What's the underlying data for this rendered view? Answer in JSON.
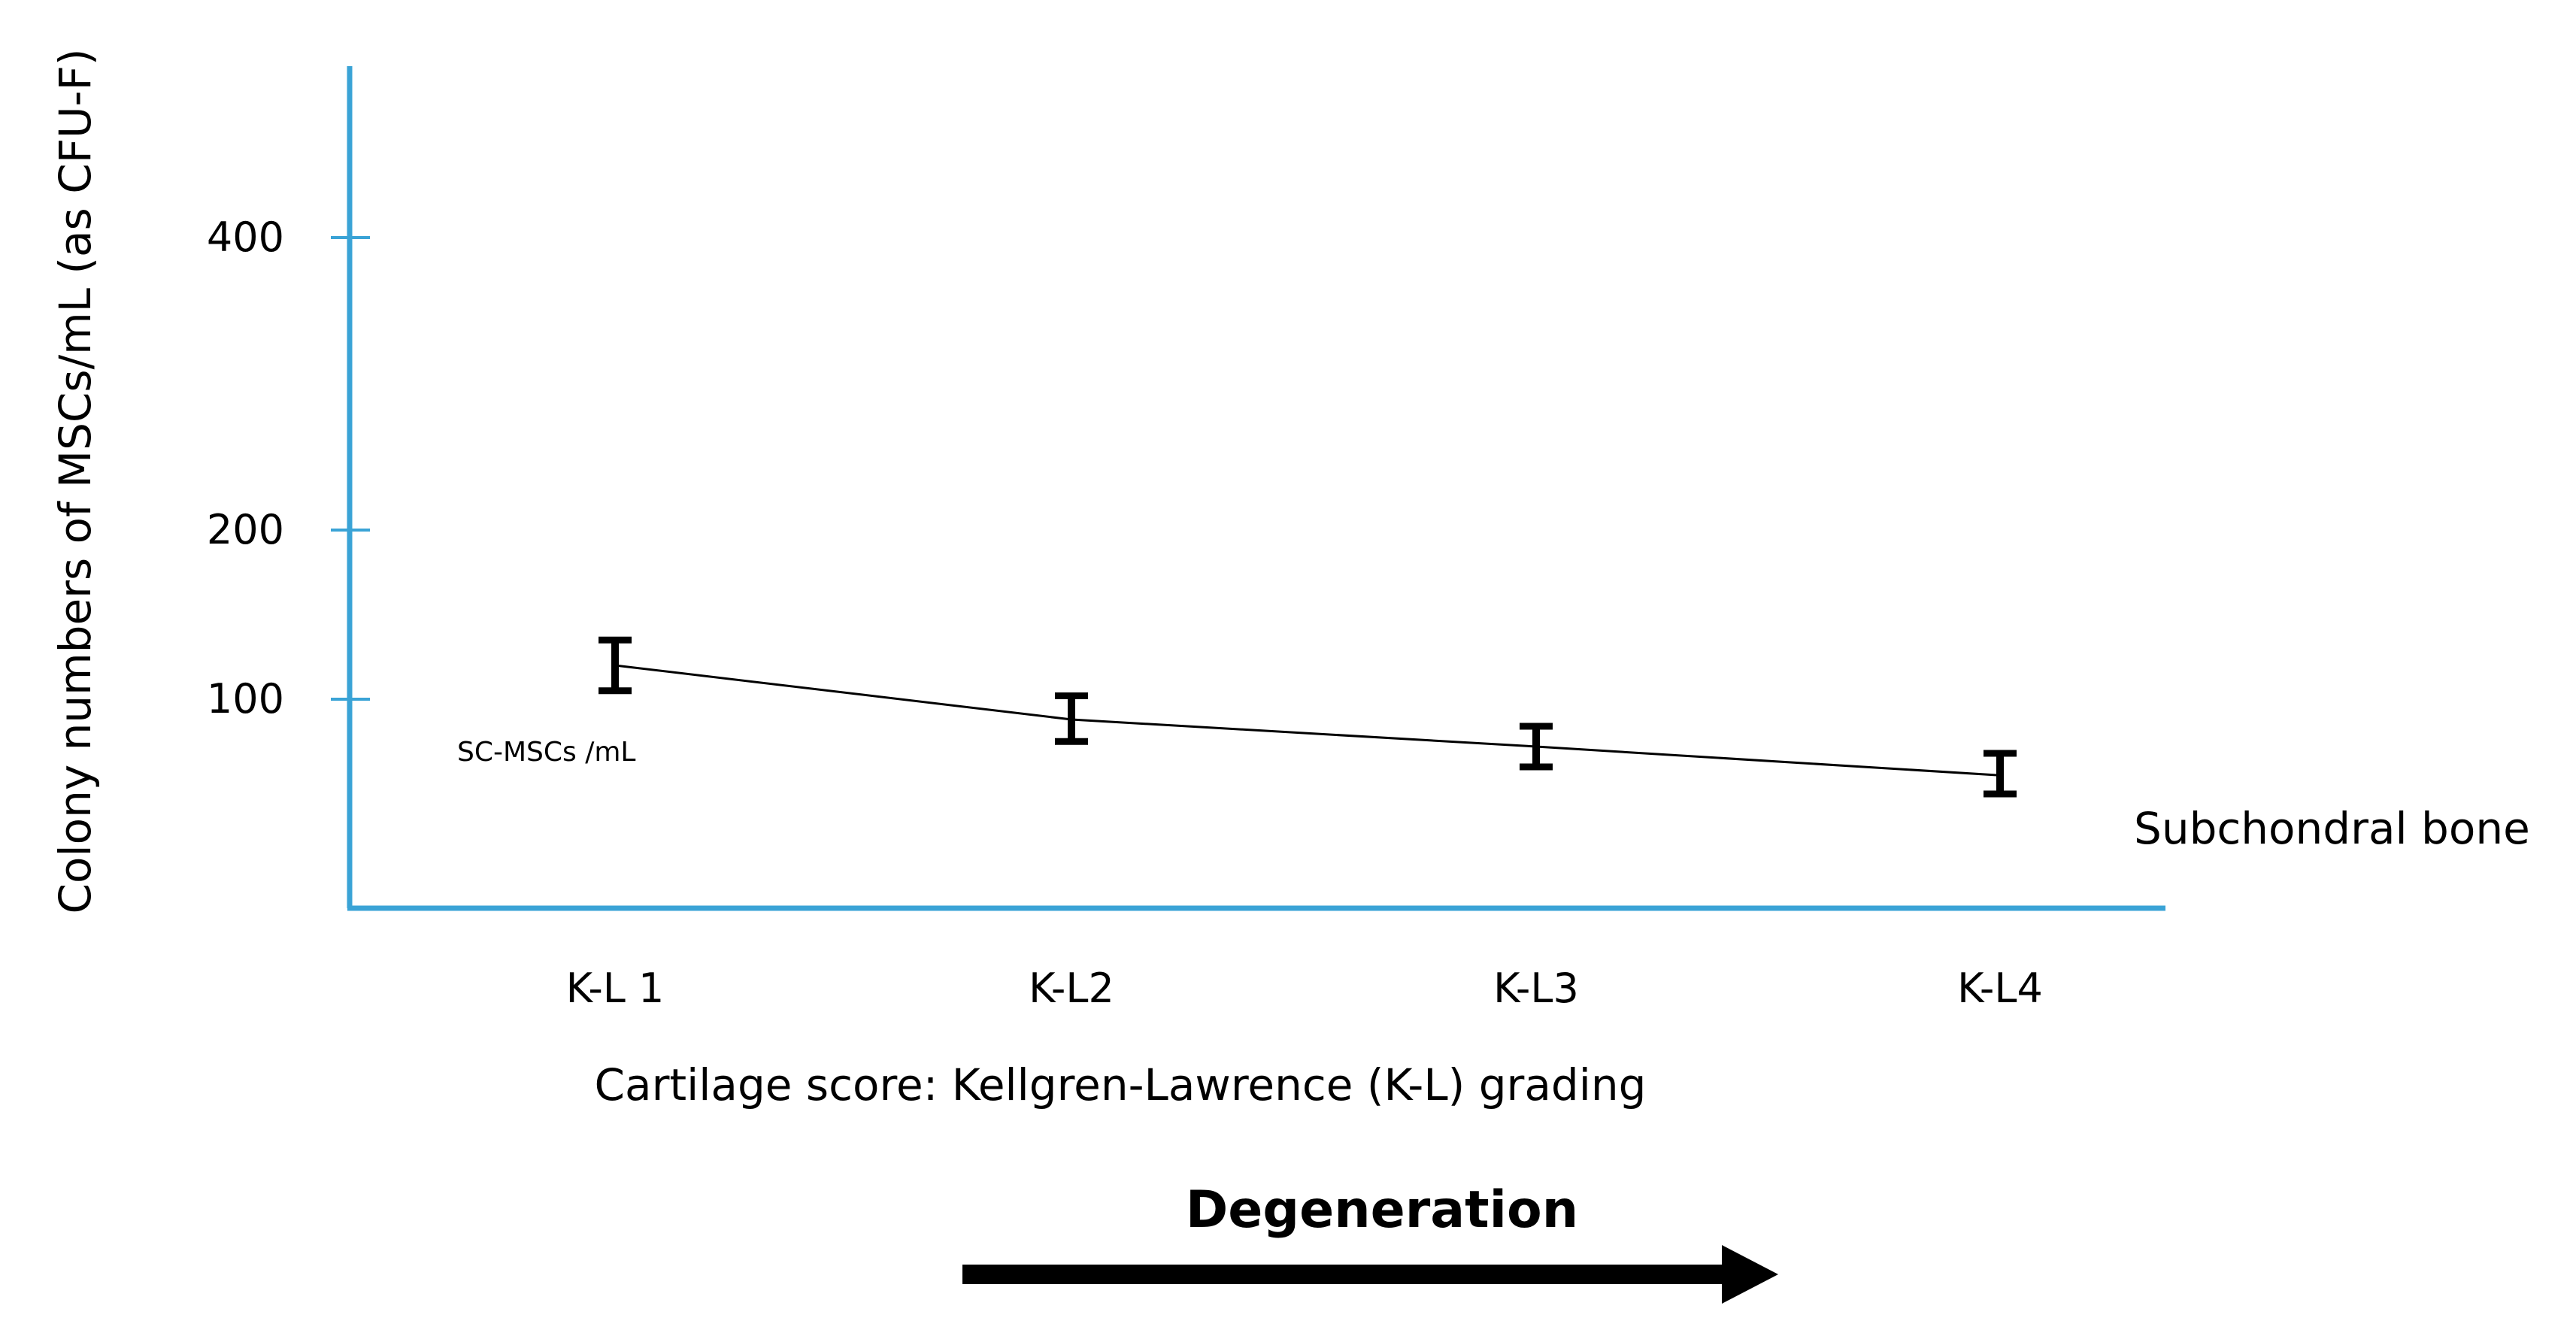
{
  "chart_data": {
    "type": "line",
    "title": "",
    "xlabel": "Cartilage score: Kellgren-Lawrence (K-L) grading",
    "ylabel": "Colony numbers of MSCs/mL (as CFU-F)",
    "categories": [
      "K-L 1",
      "K-L2",
      "K-L3",
      "K-L4"
    ],
    "y_ticks": [
      "400",
      "200",
      "100"
    ],
    "series": [
      {
        "name": "SC-MSCs /mL",
        "values": [
          120,
          88,
          72,
          55
        ],
        "error_low": [
          105,
          75,
          60,
          44
        ],
        "error_high": [
          135,
          102,
          84,
          68
        ]
      }
    ],
    "region_label": "Subchondral bone",
    "grid": false,
    "legend": "none",
    "colors": {
      "axis": "#3aa3d6",
      "line": "#000000"
    }
  },
  "annotation": {
    "label": "Degeneration",
    "arrow_direction": "right"
  }
}
